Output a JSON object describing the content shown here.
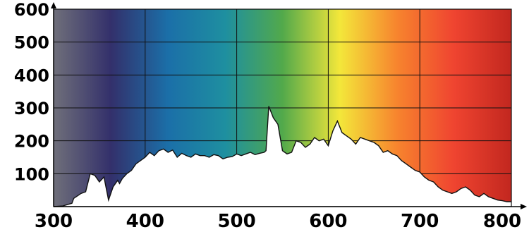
{
  "chart_data": {
    "type": "area",
    "title": "",
    "xlabel": "",
    "ylabel": "",
    "xlim": [
      300,
      800
    ],
    "ylim": [
      0,
      600
    ],
    "x_ticks": [
      "300",
      "400",
      "500",
      "600",
      "700",
      "800"
    ],
    "y_ticks": [
      "100",
      "200",
      "300",
      "400",
      "500",
      "600"
    ],
    "grid": true,
    "background": "visible spectrum gradient (violet to red)",
    "spectrum_colors": [
      "#6f6f7a",
      "#33306b",
      "#1b6fa8",
      "#1e8fa0",
      "#52a94b",
      "#f3e73a",
      "#f7842e",
      "#ef4430",
      "#c2271f"
    ],
    "series": [
      {
        "x": [
          300,
          310,
          320,
          322,
          330,
          335,
          340,
          345,
          350,
          355,
          360,
          365,
          370,
          372,
          375,
          380,
          385,
          390,
          395,
          400,
          405,
          410,
          415,
          420,
          425,
          430,
          435,
          440,
          445,
          450,
          455,
          460,
          465,
          470,
          475,
          480,
          485,
          490,
          495,
          500,
          505,
          510,
          515,
          520,
          525,
          530,
          532,
          535,
          540,
          545,
          550,
          555,
          560,
          565,
          570,
          575,
          580,
          585,
          590,
          595,
          600,
          605,
          610,
          615,
          620,
          625,
          630,
          635,
          640,
          645,
          650,
          655,
          660,
          665,
          670,
          675,
          680,
          685,
          690,
          695,
          700,
          705,
          710,
          715,
          720,
          725,
          730,
          735,
          740,
          745,
          750,
          755,
          760,
          765,
          770,
          775,
          780,
          785,
          790,
          795,
          800
        ],
        "values": [
          0,
          2,
          10,
          25,
          40,
          45,
          100,
          95,
          75,
          90,
          20,
          60,
          80,
          70,
          85,
          100,
          110,
          130,
          140,
          150,
          165,
          155,
          170,
          175,
          165,
          172,
          150,
          162,
          155,
          150,
          160,
          155,
          155,
          150,
          158,
          155,
          145,
          150,
          152,
          160,
          155,
          160,
          165,
          158,
          162,
          165,
          170,
          305,
          270,
          250,
          170,
          160,
          165,
          200,
          195,
          180,
          190,
          210,
          200,
          205,
          185,
          230,
          260,
          225,
          215,
          205,
          190,
          210,
          205,
          200,
          195,
          185,
          165,
          170,
          160,
          155,
          140,
          130,
          120,
          110,
          105,
          90,
          80,
          75,
          60,
          50,
          45,
          40,
          45,
          55,
          60,
          50,
          35,
          30,
          40,
          30,
          25,
          20,
          18,
          15,
          15
        ]
      }
    ]
  }
}
